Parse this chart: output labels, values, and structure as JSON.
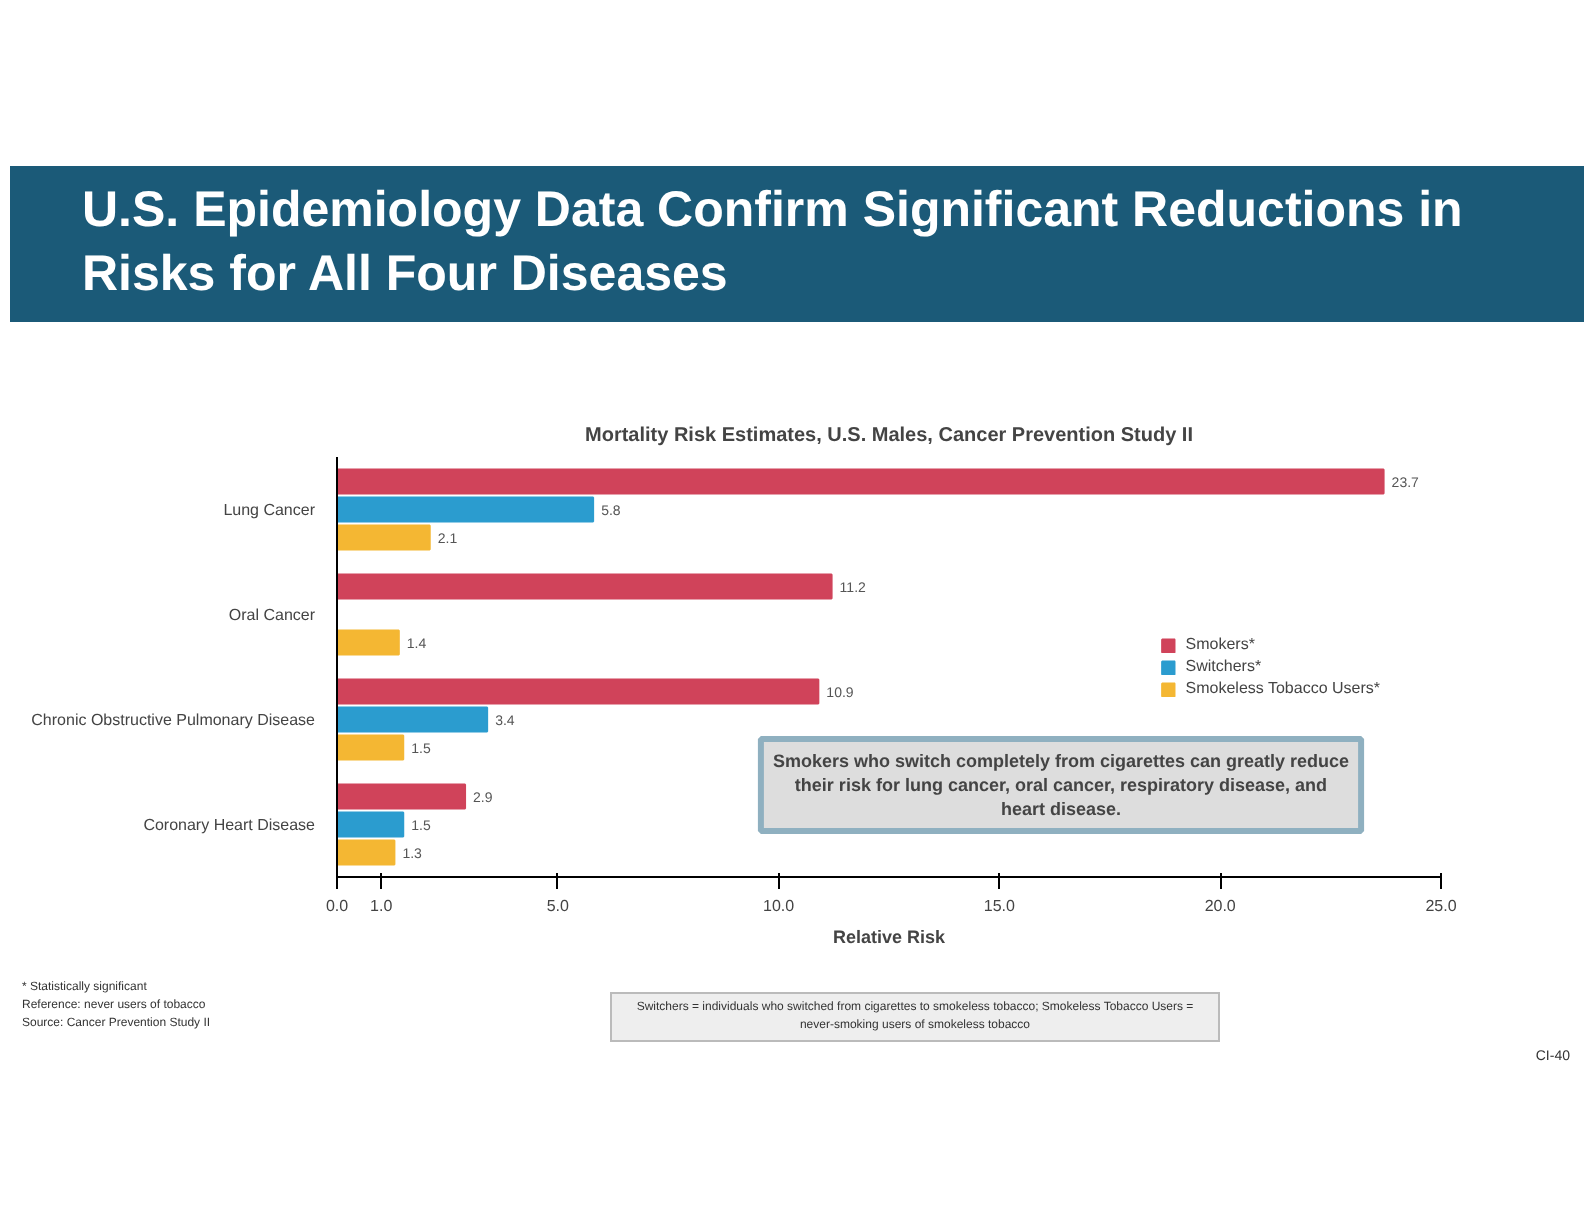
{
  "chart_data": {
    "type": "bar",
    "orientation": "horizontal",
    "title": "U.S. Epidemiology Data Confirm Significant Reductions in Risks for All Four Diseases",
    "subtitle": "Mortality Risk Estimates, U.S. Males, Cancer Prevention Study II",
    "xlabel": "Relative Risk",
    "categories": [
      "Lung Cancer",
      "Oral Cancer",
      "Chronic Obstructive Pulmonary Disease",
      "Coronary Heart Disease"
    ],
    "series": [
      {
        "name": "Smokers*",
        "color": "#d0435a",
        "values": [
          23.7,
          11.2,
          10.9,
          2.9
        ]
      },
      {
        "name": "Switchers*",
        "color": "#2b9ccf",
        "values": [
          5.8,
          null,
          3.4,
          1.5
        ]
      },
      {
        "name": "Smokeless Tobacco Users*",
        "color": "#f4b733",
        "values": [
          2.1,
          1.4,
          1.5,
          1.3
        ]
      }
    ],
    "xlim": [
      0,
      25
    ],
    "xticks": [
      {
        "value": 0,
        "label": "0.0"
      },
      {
        "value": 1,
        "label": "1.0"
      },
      {
        "value": 5,
        "label": "5.0"
      },
      {
        "value": 10,
        "label": "10.0"
      },
      {
        "value": 15,
        "label": "15.0"
      },
      {
        "value": 20,
        "label": "20.0"
      },
      {
        "value": 25,
        "label": "25.0"
      }
    ],
    "data_labels": true,
    "legend": "right",
    "grid": false,
    "annotations": [
      "Smokers who switch completely from cigarettes can greatly reduce their risk for lung cancer, oral cancer, respiratory disease, and heart disease.",
      "Switchers = individuals who switched from cigarettes to smokeless tobacco; Smokeless Tobacco Users = never-smoking users of smokeless tobacco",
      "* Statistically significant",
      "Reference: never users of tobacco",
      "Source: Cancer Prevention Study II",
      "CI-40"
    ]
  }
}
